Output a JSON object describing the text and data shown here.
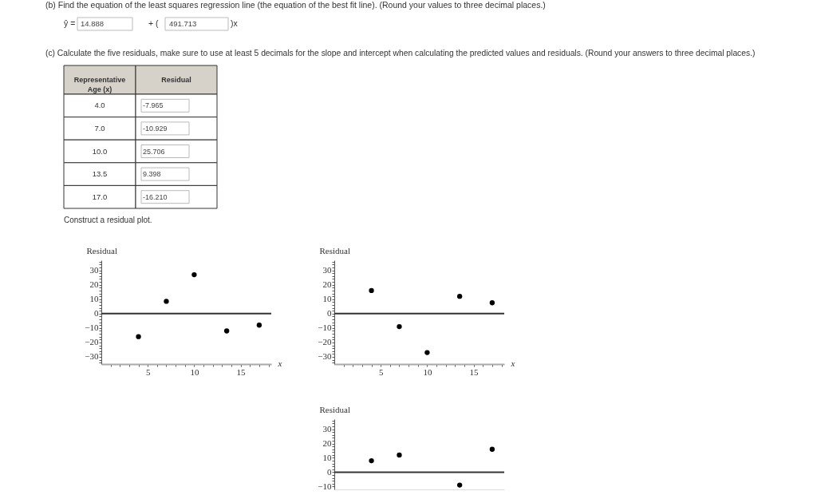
{
  "chart_data": [
    {
      "type": "other",
      "title": "(b) Find the equation of the least squares regression line (the equation of the best fit line). (Round your values to three decimal places.)",
      "annotations": [
        "ŷ =",
        "14.888",
        "+ (",
        "491.713",
        ")x",
        "(c) Calculate the five residuals, make sure to use at least 5 decimals for the slope and intercept when calculating the predicted values and residuals. (Round your answers to three decimal places.)"
      ]
    },
    {
      "type": "other",
      "xlabel": "Representative Age (x)",
      "ylabel": "Residual",
      "categories": [
        "4.0",
        "7.0",
        "10.0",
        "13.5",
        "17.0"
      ],
      "values": [
        -7.965,
        -10.929,
        25.706,
        9.398,
        -16.21
      ],
      "value_labels": [
        "-7.965",
        "-10.929",
        "25.706",
        "9.398",
        "-16.210"
      ],
      "annotations": [
        "Construct a residual plot."
      ]
    },
    {
      "type": "scatter",
      "ylabel": "Residual",
      "xlabel": "x",
      "x": [
        4,
        7,
        10,
        13.5,
        17
      ],
      "series": [
        {
          "color": "#000000",
          "values": [
            -16,
            8.5,
            27,
            -12,
            -8
          ]
        }
      ],
      "marker": "circle",
      "xlim": [
        0,
        18.3
      ],
      "ylim": [
        -35,
        37
      ],
      "xticks": [
        {
          "value": 1,
          "label": null
        },
        {
          "value": 2,
          "label": null
        },
        {
          "value": 3,
          "label": null
        },
        {
          "value": 4,
          "label": null
        },
        5,
        {
          "value": 6,
          "label": null
        },
        {
          "value": 7,
          "label": null
        },
        {
          "value": 8,
          "label": null
        },
        {
          "value": 9,
          "label": null
        },
        10,
        {
          "value": 11,
          "label": null
        },
        {
          "value": 12,
          "label": null
        },
        {
          "value": 13,
          "label": null
        },
        {
          "value": 14,
          "label": null
        },
        15,
        {
          "value": 16,
          "label": null
        },
        {
          "value": 17,
          "label": null
        },
        {
          "value": 18,
          "label": null
        }
      ],
      "yticks": [
        {
          "value": -34,
          "label": null
        },
        {
          "value": -32,
          "label": null
        },
        -30,
        {
          "value": -28,
          "label": null
        },
        {
          "value": -26,
          "label": null
        },
        {
          "value": -24,
          "label": null
        },
        {
          "value": -22,
          "label": null
        },
        -20,
        {
          "value": -18,
          "label": null
        },
        {
          "value": -16,
          "label": null
        },
        {
          "value": -14,
          "label": null
        },
        {
          "value": -12,
          "label": null
        },
        -10,
        {
          "value": -8,
          "label": null
        },
        {
          "value": -6,
          "label": null
        },
        {
          "value": -4,
          "label": null
        },
        {
          "value": -2,
          "label": null
        },
        0,
        {
          "value": 2,
          "label": null
        },
        {
          "value": 4,
          "label": null
        },
        {
          "value": 6,
          "label": null
        },
        {
          "value": 8,
          "label": null
        },
        10,
        {
          "value": 12,
          "label": null
        },
        {
          "value": 14,
          "label": null
        },
        {
          "value": 16,
          "label": null
        },
        {
          "value": 18,
          "label": null
        },
        20,
        {
          "value": 22,
          "label": null
        },
        {
          "value": 24,
          "label": null
        },
        {
          "value": 26,
          "label": null
        },
        {
          "value": 28,
          "label": null
        },
        30,
        {
          "value": 32,
          "label": null
        },
        {
          "value": 34,
          "label": null
        },
        {
          "value": 36,
          "label": null
        }
      ],
      "ref_lines": [
        {
          "axis": "y",
          "value": 0,
          "color": "#333333"
        }
      ]
    },
    {
      "type": "scatter",
      "ylabel": "Residual",
      "xlabel": "x",
      "x": [
        4,
        7,
        10,
        13.5,
        17
      ],
      "series": [
        {
          "color": "#000000",
          "values": [
            16,
            -9,
            -27,
            12,
            7.5
          ]
        }
      ],
      "marker": "circle",
      "xlim": [
        0,
        18.3
      ],
      "ylim": [
        -35,
        37
      ],
      "xticks": [
        {
          "value": 1,
          "label": null
        },
        {
          "value": 2,
          "label": null
        },
        {
          "value": 3,
          "label": null
        },
        {
          "value": 4,
          "label": null
        },
        5,
        {
          "value": 6,
          "label": null
        },
        {
          "value": 7,
          "label": null
        },
        {
          "value": 8,
          "label": null
        },
        {
          "value": 9,
          "label": null
        },
        10,
        {
          "value": 11,
          "label": null
        },
        {
          "value": 12,
          "label": null
        },
        {
          "value": 13,
          "label": null
        },
        {
          "value": 14,
          "label": null
        },
        15,
        {
          "value": 16,
          "label": null
        },
        {
          "value": 17,
          "label": null
        },
        {
          "value": 18,
          "label": null
        }
      ],
      "yticks": [
        {
          "value": -34,
          "label": null
        },
        {
          "value": -32,
          "label": null
        },
        -30,
        {
          "value": -28,
          "label": null
        },
        {
          "value": -26,
          "label": null
        },
        {
          "value": -24,
          "label": null
        },
        {
          "value": -22,
          "label": null
        },
        -20,
        {
          "value": -18,
          "label": null
        },
        {
          "value": -16,
          "label": null
        },
        {
          "value": -14,
          "label": null
        },
        {
          "value": -12,
          "label": null
        },
        -10,
        {
          "value": -8,
          "label": null
        },
        {
          "value": -6,
          "label": null
        },
        {
          "value": -4,
          "label": null
        },
        {
          "value": -2,
          "label": null
        },
        0,
        {
          "value": 2,
          "label": null
        },
        {
          "value": 4,
          "label": null
        },
        {
          "value": 6,
          "label": null
        },
        {
          "value": 8,
          "label": null
        },
        10,
        {
          "value": 12,
          "label": null
        },
        {
          "value": 14,
          "label": null
        },
        {
          "value": 16,
          "label": null
        },
        {
          "value": 18,
          "label": null
        },
        20,
        {
          "value": 22,
          "label": null
        },
        {
          "value": 24,
          "label": null
        },
        {
          "value": 26,
          "label": null
        },
        {
          "value": 28,
          "label": null
        },
        30,
        {
          "value": 32,
          "label": null
        },
        {
          "value": 34,
          "label": null
        },
        {
          "value": 36,
          "label": null
        }
      ],
      "ref_lines": [
        {
          "axis": "y",
          "value": 0,
          "color": "#333333"
        }
      ]
    },
    {
      "type": "scatter",
      "ylabel": "Residual",
      "x": [
        4,
        7,
        13.5,
        17
      ],
      "series": [
        {
          "color": "#000000",
          "values": [
            8,
            12,
            -9,
            16
          ]
        }
      ],
      "marker": "circle",
      "xlim": [
        0,
        18.3
      ],
      "ylim": [
        -12,
        37
      ],
      "tick_labels": "y",
      "yticks": [
        -10,
        {
          "value": -8,
          "label": null
        },
        {
          "value": -6,
          "label": null
        },
        {
          "value": -4,
          "label": null
        },
        {
          "value": -2,
          "label": null
        },
        0,
        {
          "value": 2,
          "label": null
        },
        {
          "value": 4,
          "label": null
        },
        {
          "value": 6,
          "label": null
        },
        {
          "value": 8,
          "label": null
        },
        10,
        {
          "value": 12,
          "label": null
        },
        {
          "value": 14,
          "label": null
        },
        {
          "value": 16,
          "label": null
        },
        {
          "value": 18,
          "label": null
        },
        20,
        {
          "value": 22,
          "label": null
        },
        {
          "value": 24,
          "label": null
        },
        {
          "value": 26,
          "label": null
        },
        {
          "value": 28,
          "label": null
        },
        30,
        {
          "value": 32,
          "label": null
        },
        {
          "value": 34,
          "label": null
        },
        {
          "value": 36,
          "label": null
        }
      ],
      "ref_lines": [
        {
          "axis": "y",
          "value": 0,
          "color": "#333333"
        }
      ]
    }
  ]
}
